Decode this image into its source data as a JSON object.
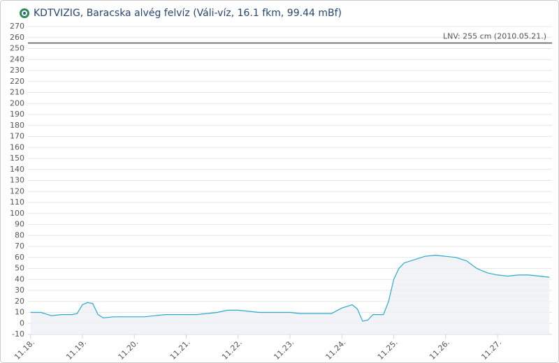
{
  "chart_data": {
    "type": "area",
    "title": "KDTVIZIG, Baracska alvég felvíz (Váli-víz, 16.1 fkm, 99.44 mBf)",
    "x": [
      0,
      0.2,
      0.4,
      0.6,
      0.8,
      0.9,
      1.0,
      1.1,
      1.2,
      1.3,
      1.4,
      1.6,
      1.8,
      2.0,
      2.2,
      2.4,
      2.6,
      2.8,
      3.0,
      3.2,
      3.4,
      3.6,
      3.8,
      4.0,
      4.2,
      4.4,
      4.6,
      4.8,
      5.0,
      5.2,
      5.4,
      5.6,
      5.8,
      6.0,
      6.2,
      6.3,
      6.4,
      6.5,
      6.6,
      6.8,
      6.9,
      7.0,
      7.1,
      7.2,
      7.4,
      7.6,
      7.8,
      8.0,
      8.2,
      8.4,
      8.6,
      8.8,
      9.0,
      9.2,
      9.4,
      9.6,
      9.8,
      10.0
    ],
    "series": [
      {
        "color": "#2aa9c9",
        "values": [
          10,
          10,
          7,
          8,
          8,
          9,
          17,
          19,
          18,
          8,
          5,
          6,
          6,
          6,
          6,
          7,
          8,
          8,
          8,
          8,
          9,
          10,
          12,
          12,
          11,
          10,
          10,
          10,
          10,
          9,
          9,
          9,
          9,
          14,
          17,
          13,
          2,
          3,
          8,
          8,
          20,
          40,
          50,
          55,
          58,
          61,
          62,
          61,
          60,
          57,
          50,
          46,
          44,
          43,
          44,
          44,
          43,
          42
        ]
      }
    ],
    "xlim": [
      -0.05,
      10.05
    ],
    "xticks": [
      {
        "value": 0,
        "label": "11.18."
      },
      {
        "value": 1,
        "label": "11.19."
      },
      {
        "value": 2,
        "label": "11.20."
      },
      {
        "value": 3,
        "label": "11.21."
      },
      {
        "value": 4,
        "label": "11.22."
      },
      {
        "value": 5,
        "label": "11.23."
      },
      {
        "value": 6,
        "label": "11.24."
      },
      {
        "value": 7,
        "label": "11.25."
      },
      {
        "value": 8,
        "label": "11.26."
      },
      {
        "value": 9,
        "label": "11.27."
      }
    ],
    "ylim": [
      -10,
      270
    ],
    "yticks": [
      -10,
      0,
      10,
      20,
      30,
      40,
      50,
      60,
      70,
      80,
      90,
      100,
      110,
      120,
      130,
      140,
      150,
      160,
      170,
      180,
      190,
      200,
      210,
      220,
      230,
      240,
      250,
      260,
      270
    ],
    "grid": true,
    "plot_lines": [
      {
        "value": 255,
        "label": "LNV: 255 cm (2010.05.21.)",
        "color": "#555555"
      }
    ]
  }
}
